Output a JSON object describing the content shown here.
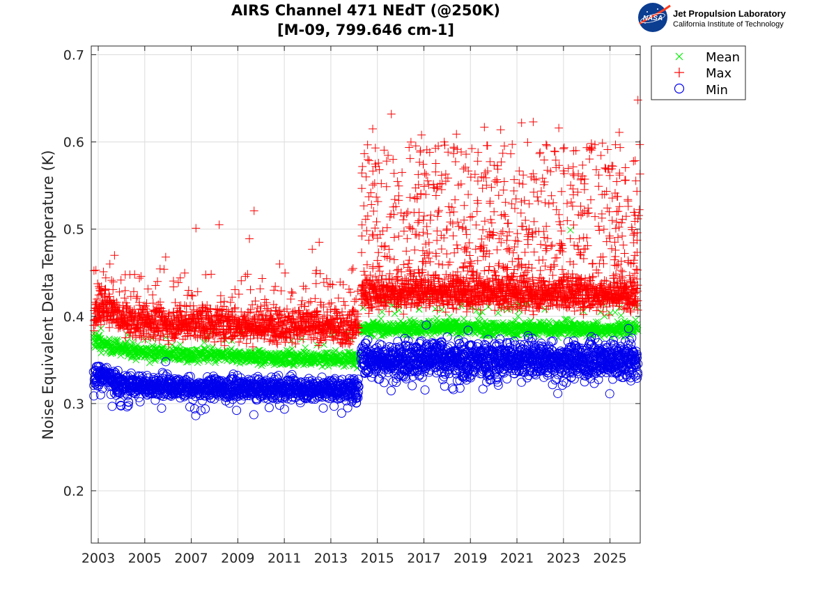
{
  "chart_data": {
    "type": "scatter",
    "title": [
      "AIRS Channel 471 NEdT (@250K)",
      "[M-09, 799.646 cm-1]"
    ],
    "xlabel": "",
    "ylabel": "Noise Equivalent Delta Temperature (K)",
    "xlim": [
      2002.7,
      2026.3
    ],
    "ylim": [
      0.14,
      0.71
    ],
    "xticks": [
      2003,
      2005,
      2007,
      2009,
      2011,
      2013,
      2015,
      2017,
      2019,
      2021,
      2023,
      2025
    ],
    "yticks": [
      0.2,
      0.3,
      0.4,
      0.5,
      0.6,
      0.7
    ],
    "ytick_labels": [
      "0.2",
      "0.3",
      "0.4",
      "0.5",
      "0.6",
      "0.7"
    ],
    "grid": true,
    "legend_position": "outside-top-right",
    "logo": {
      "org": "Jet Propulsion Laboratory",
      "sub": "California Institute of Technology",
      "badge": "NASA"
    },
    "series": [
      {
        "name": "Mean",
        "marker": "x",
        "color": "#00ee00",
        "segments": [
          {
            "x": [
              2002.8,
              2003.2,
              2003.6,
              2004.0,
              2004.5,
              2005.0,
              2006.0,
              2007.0,
              2008.0,
              2009.0,
              2010.0,
              2011.0,
              2012.0,
              2013.0,
              2014.2
            ],
            "y": [
              0.372,
              0.368,
              0.365,
              0.363,
              0.361,
              0.359,
              0.357,
              0.355,
              0.355,
              0.354,
              0.353,
              0.352,
              0.352,
              0.351,
              0.351
            ],
            "spread": 0.004,
            "count": 900
          },
          {
            "x": [
              2014.3,
              2015.0,
              2016.0,
              2017.0,
              2018.0,
              2019.0,
              2020.0,
              2021.0,
              2022.0,
              2023.0,
              2024.0,
              2025.0,
              2026.2
            ],
            "y": [
              0.387,
              0.386,
              0.386,
              0.387,
              0.387,
              0.387,
              0.386,
              0.386,
              0.386,
              0.386,
              0.385,
              0.385,
              0.386
            ],
            "spread": 0.004,
            "count": 1100
          }
        ],
        "outliers": [
          [
            2005.9,
            0.376
          ],
          [
            2007.6,
            0.374
          ],
          [
            2011.9,
            0.364
          ],
          [
            2012.4,
            0.367
          ],
          [
            2015.2,
            0.405
          ],
          [
            2016.8,
            0.408
          ],
          [
            2018.6,
            0.412
          ],
          [
            2019.5,
            0.405
          ],
          [
            2020.3,
            0.41
          ],
          [
            2021.1,
            0.407
          ],
          [
            2022.2,
            0.408
          ],
          [
            2023.3,
            0.499
          ],
          [
            2024.6,
            0.405
          ],
          [
            2025.4,
            0.41
          ],
          [
            2026.1,
            0.396
          ]
        ]
      },
      {
        "name": "Max",
        "marker": "+",
        "color": "#ff0000",
        "segments": [
          {
            "x": [
              2002.8,
              2003.2,
              2003.6,
              2004.0,
              2005.0,
              2006.0,
              2007.0,
              2008.0,
              2009.0,
              2010.0,
              2011.0,
              2012.0,
              2013.0,
              2014.2
            ],
            "y": [
              0.405,
              0.41,
              0.405,
              0.395,
              0.392,
              0.392,
              0.391,
              0.39,
              0.389,
              0.388,
              0.388,
              0.388,
              0.388,
              0.387
            ],
            "spread": 0.009,
            "count": 1200
          },
          {
            "x": [
              2014.3,
              2015.0,
              2016.0,
              2017.0,
              2018.0,
              2019.0,
              2020.0,
              2021.0,
              2022.0,
              2023.0,
              2024.0,
              2025.0,
              2026.2
            ],
            "y": [
              0.428,
              0.426,
              0.426,
              0.428,
              0.427,
              0.427,
              0.426,
              0.426,
              0.426,
              0.426,
              0.425,
              0.425,
              0.425
            ],
            "spread": 0.009,
            "count": 1400
          }
        ],
        "outliers": [
          [
            2002.9,
            0.453
          ],
          [
            2003.5,
            0.46
          ],
          [
            2003.7,
            0.47
          ],
          [
            2005.9,
            0.468
          ],
          [
            2007.2,
            0.501
          ],
          [
            2008.2,
            0.505
          ],
          [
            2009.7,
            0.521
          ],
          [
            2009.5,
            0.489
          ],
          [
            2010.8,
            0.46
          ],
          [
            2012.5,
            0.485
          ],
          [
            2012.2,
            0.477
          ],
          [
            2014.8,
            0.615
          ],
          [
            2015.6,
            0.632
          ],
          [
            2016.9,
            0.608
          ],
          [
            2018.4,
            0.609
          ],
          [
            2019.6,
            0.617
          ],
          [
            2020.3,
            0.614
          ],
          [
            2021.2,
            0.622
          ],
          [
            2021.7,
            0.623
          ],
          [
            2022.8,
            0.616
          ],
          [
            2024.2,
            0.594
          ],
          [
            2025.4,
            0.611
          ],
          [
            2026.2,
            0.648
          ]
        ],
        "upper_band": {
          "x_start": 2014.3,
          "x_end": 2026.3,
          "y_low": 0.44,
          "y_high": 0.6,
          "count": 650
        }
      },
      {
        "name": "Min",
        "marker": "o",
        "color": "#0000ee",
        "segments": [
          {
            "x": [
              2002.8,
              2003.2,
              2003.6,
              2004.0,
              2005.0,
              2006.0,
              2007.0,
              2008.0,
              2009.0,
              2010.0,
              2011.0,
              2012.0,
              2013.0,
              2014.2
            ],
            "y": [
              0.333,
              0.333,
              0.328,
              0.322,
              0.32,
              0.319,
              0.318,
              0.318,
              0.317,
              0.317,
              0.317,
              0.317,
              0.316,
              0.316
            ],
            "spread": 0.006,
            "count": 1200
          },
          {
            "x": [
              2014.3,
              2015.0,
              2016.0,
              2017.0,
              2018.0,
              2019.0,
              2020.0,
              2021.0,
              2022.0,
              2023.0,
              2024.0,
              2025.0,
              2026.2
            ],
            "y": [
              0.352,
              0.35,
              0.35,
              0.352,
              0.351,
              0.351,
              0.351,
              0.351,
              0.35,
              0.35,
              0.349,
              0.349,
              0.35
            ],
            "spread": 0.01,
            "count": 1400
          }
        ],
        "outliers": [
          [
            2003.1,
            0.31
          ],
          [
            2004.3,
            0.302
          ],
          [
            2004.8,
            0.302
          ],
          [
            2005.9,
            0.348
          ],
          [
            2010.8,
            0.298
          ],
          [
            2013.9,
            0.302
          ],
          [
            2014.1,
            0.301
          ],
          [
            2020.2,
            0.321
          ],
          [
            2025.9,
            0.326
          ],
          [
            2023.4,
            0.335
          ],
          [
            2017.1,
            0.39
          ],
          [
            2018.9,
            0.384
          ],
          [
            2025.8,
            0.386
          ]
        ]
      }
    ]
  }
}
